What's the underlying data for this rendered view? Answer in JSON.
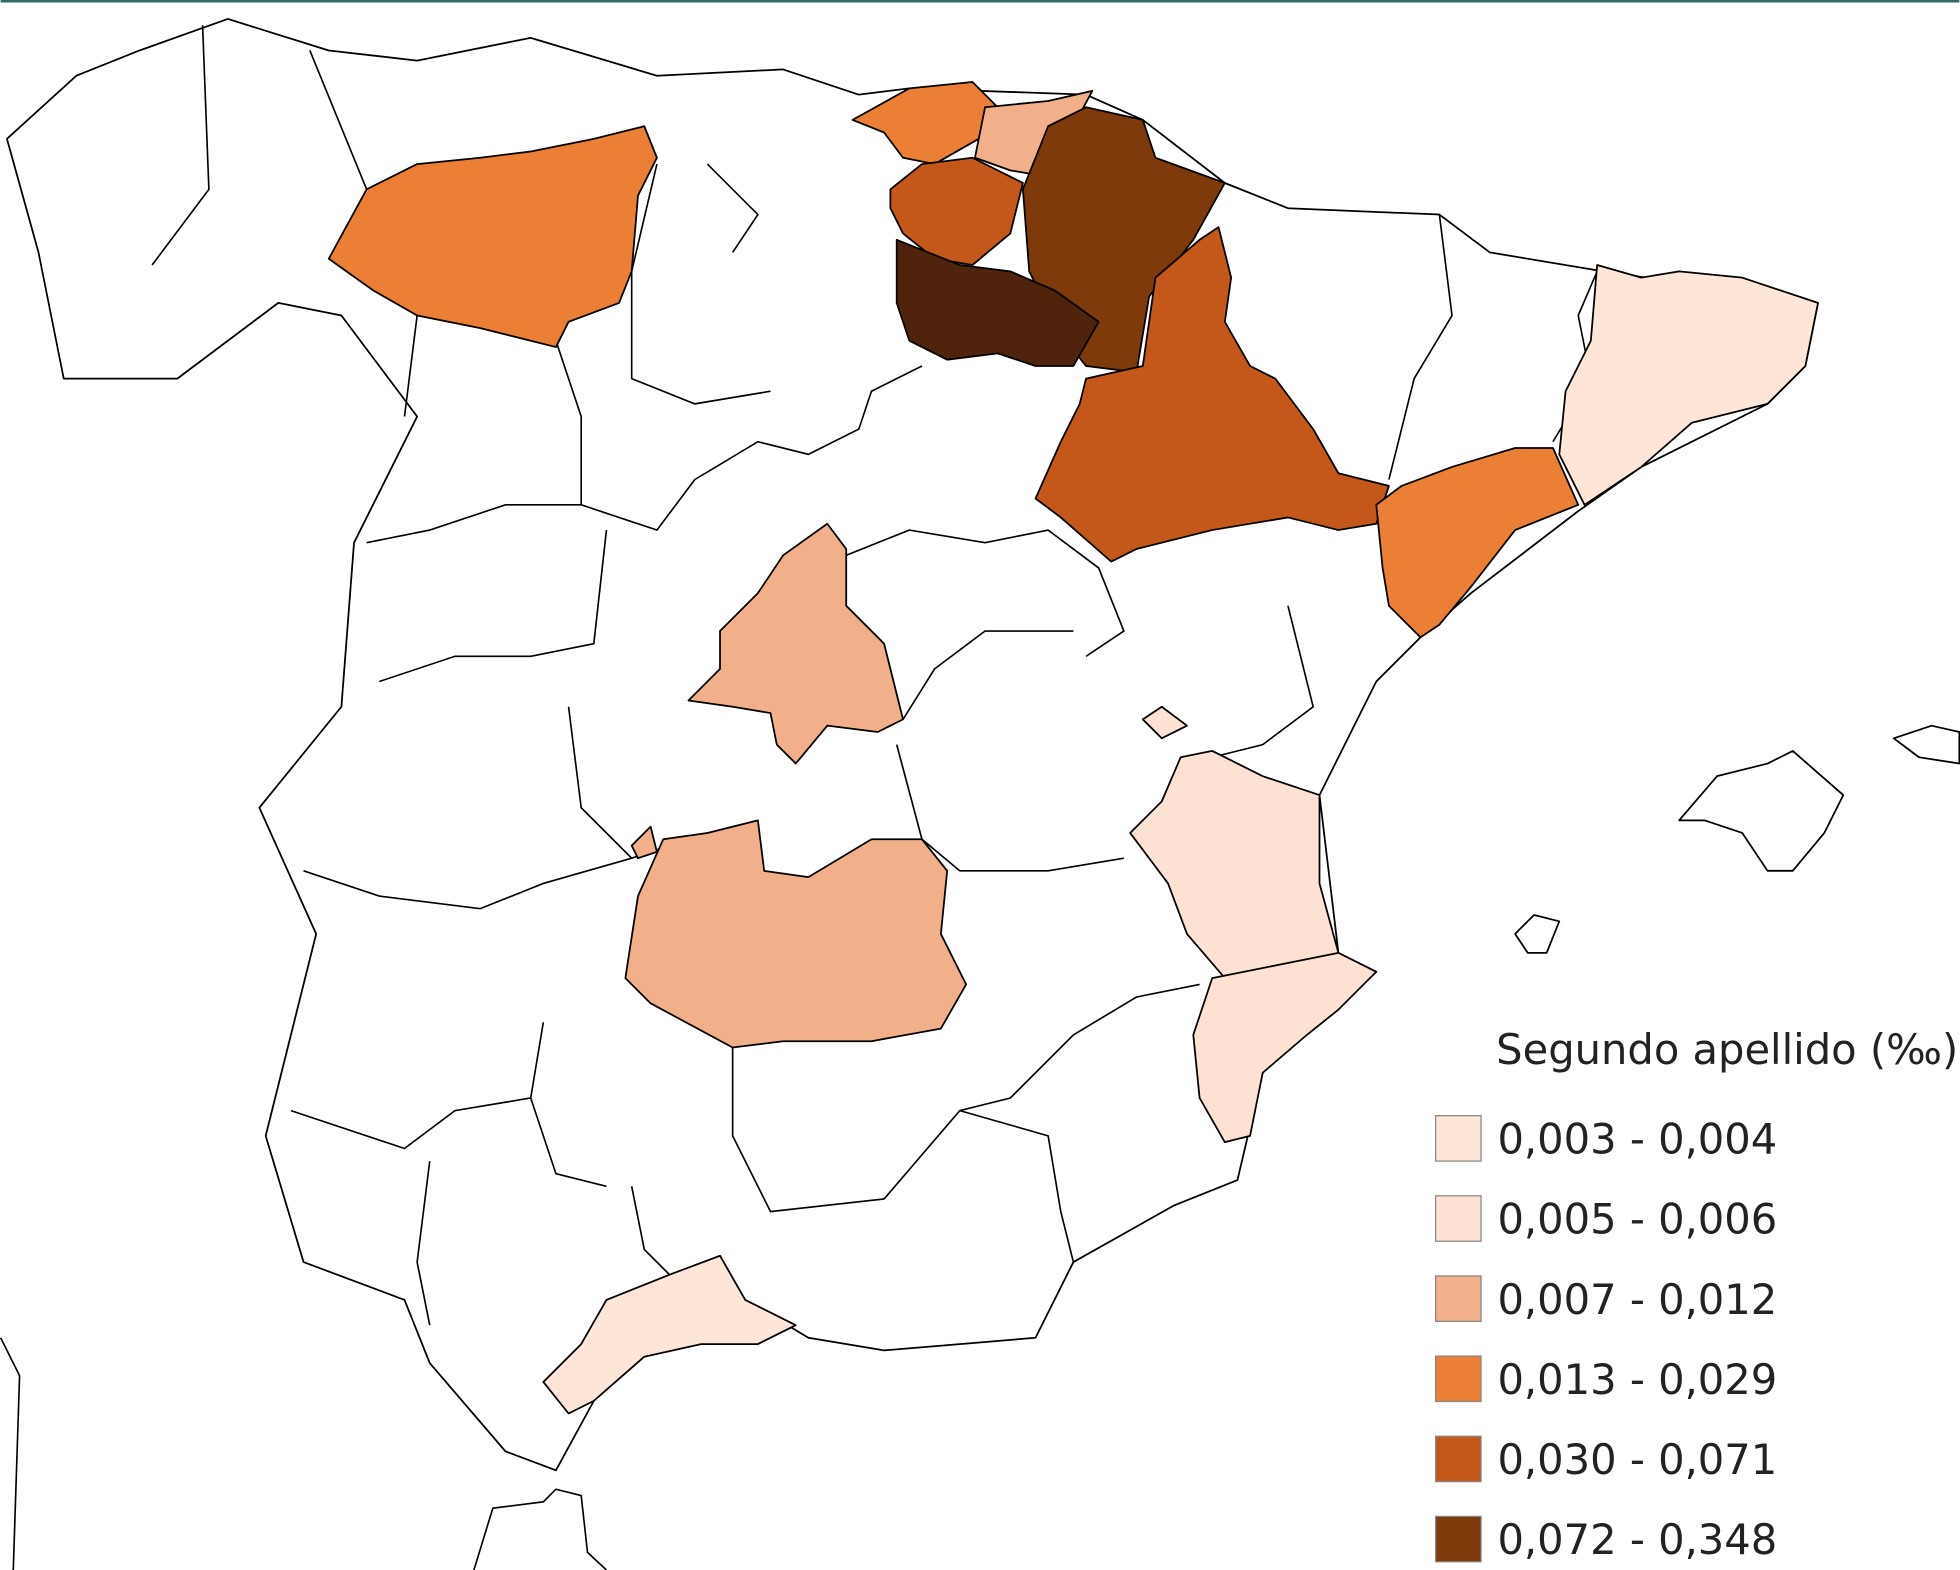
{
  "legend": {
    "title": "Segundo apellido (‰)",
    "items": [
      {
        "label": "0,003 - 0,004",
        "color": "#fde5d8"
      },
      {
        "label": "0,005 - 0,006",
        "color": "#fde2d3"
      },
      {
        "label": "0,007 - 0,012",
        "color": "#f2b08a"
      },
      {
        "label": "0,013 - 0,029",
        "color": "#ec7f36"
      },
      {
        "label": "0,030 - 0,071",
        "color": "#c4581b"
      },
      {
        "label": "0,072 - 0,348",
        "color": "#7f3a0c"
      }
    ]
  }
}
